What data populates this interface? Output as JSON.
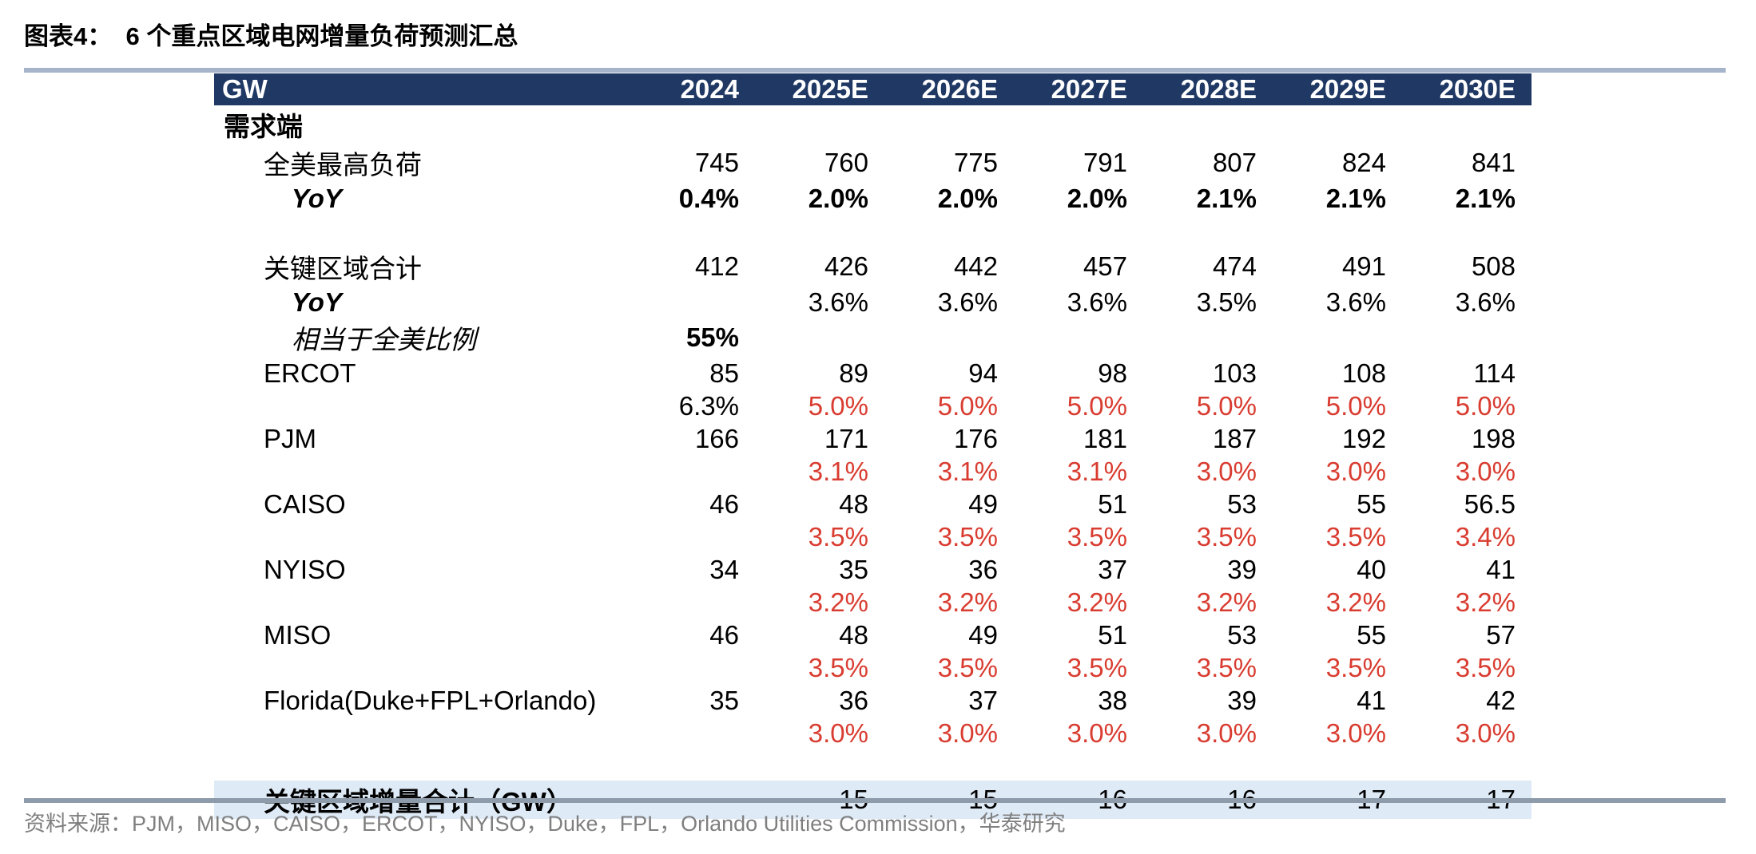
{
  "figure": {
    "title": "图表4：  6 个重点区域电网增量负荷预测汇总"
  },
  "table": {
    "unit_header": "GW",
    "year_columns": [
      "2024",
      "2025E",
      "2026E",
      "2027E",
      "2028E",
      "2029E",
      "2030E"
    ],
    "rows": [
      {
        "label": "需求端",
        "values": [
          "",
          "",
          "",
          "",
          "",
          "",
          ""
        ]
      },
      {
        "label": "全美最高负荷",
        "values": [
          "745",
          "760",
          "775",
          "791",
          "807",
          "824",
          "841"
        ]
      },
      {
        "label": "YoY",
        "values": [
          "0.4%",
          "2.0%",
          "2.0%",
          "2.0%",
          "2.1%",
          "2.1%",
          "2.1%"
        ]
      },
      {
        "label": "",
        "values": [
          "",
          "",
          "",
          "",
          "",
          "",
          ""
        ]
      },
      {
        "label": "关键区域合计",
        "values": [
          "412",
          "426",
          "442",
          "457",
          "474",
          "491",
          "508"
        ]
      },
      {
        "label": "YoY",
        "values": [
          "",
          "3.6%",
          "3.6%",
          "3.6%",
          "3.5%",
          "3.6%",
          "3.6%"
        ]
      },
      {
        "label": "相当于全美比例",
        "values": [
          "55%",
          "",
          "",
          "",
          "",
          "",
          ""
        ]
      },
      {
        "label": "ERCOT",
        "values": [
          "85",
          "89",
          "94",
          "98",
          "103",
          "108",
          "114"
        ]
      },
      {
        "label": "",
        "values": [
          "6.3%",
          "5.0%",
          "5.0%",
          "5.0%",
          "5.0%",
          "5.0%",
          "5.0%"
        ]
      },
      {
        "label": "PJM",
        "values": [
          "166",
          "171",
          "176",
          "181",
          "187",
          "192",
          "198"
        ]
      },
      {
        "label": "",
        "values": [
          "",
          "3.1%",
          "3.1%",
          "3.1%",
          "3.0%",
          "3.0%",
          "3.0%"
        ]
      },
      {
        "label": "CAISO",
        "values": [
          "46",
          "48",
          "49",
          "51",
          "53",
          "55",
          "56.5"
        ]
      },
      {
        "label": "",
        "values": [
          "",
          "3.5%",
          "3.5%",
          "3.5%",
          "3.5%",
          "3.5%",
          "3.4%"
        ]
      },
      {
        "label": "NYISO",
        "values": [
          "34",
          "35",
          "36",
          "37",
          "39",
          "40",
          "41"
        ]
      },
      {
        "label": "",
        "values": [
          "",
          "3.2%",
          "3.2%",
          "3.2%",
          "3.2%",
          "3.2%",
          "3.2%"
        ]
      },
      {
        "label": "MISO",
        "values": [
          "46",
          "48",
          "49",
          "51",
          "53",
          "55",
          "57"
        ]
      },
      {
        "label": "",
        "values": [
          "",
          "3.5%",
          "3.5%",
          "3.5%",
          "3.5%",
          "3.5%",
          "3.5%"
        ]
      },
      {
        "label": "Florida(Duke+FPL+Orlando)",
        "values": [
          "35",
          "36",
          "37",
          "38",
          "39",
          "41",
          "42"
        ]
      },
      {
        "label": "",
        "values": [
          "",
          "3.0%",
          "3.0%",
          "3.0%",
          "3.0%",
          "3.0%",
          "3.0%"
        ]
      },
      {
        "label": "",
        "values": [
          "",
          "",
          "",
          "",
          "",
          "",
          ""
        ]
      },
      {
        "label": "关键区域增量合计（GW）",
        "values": [
          "",
          "15",
          "15",
          "16",
          "16",
          "17",
          "17"
        ]
      }
    ]
  },
  "source": {
    "text": "资料来源：PJM，MISO，CAISO，ERCOT，NYISO，Duke，FPL，Orlando Utilities Commission，华泰研究"
  },
  "colors": {
    "header_bg": "#1F3864",
    "header_text": "#FFFFFF",
    "highlight_row_bg": "#DEEAF6",
    "growth_pct_red": "#D93C30",
    "rule_top": "#A5B4C9",
    "rule_bottom": "#8E9BAB",
    "source_text": "#7F7F7F"
  }
}
